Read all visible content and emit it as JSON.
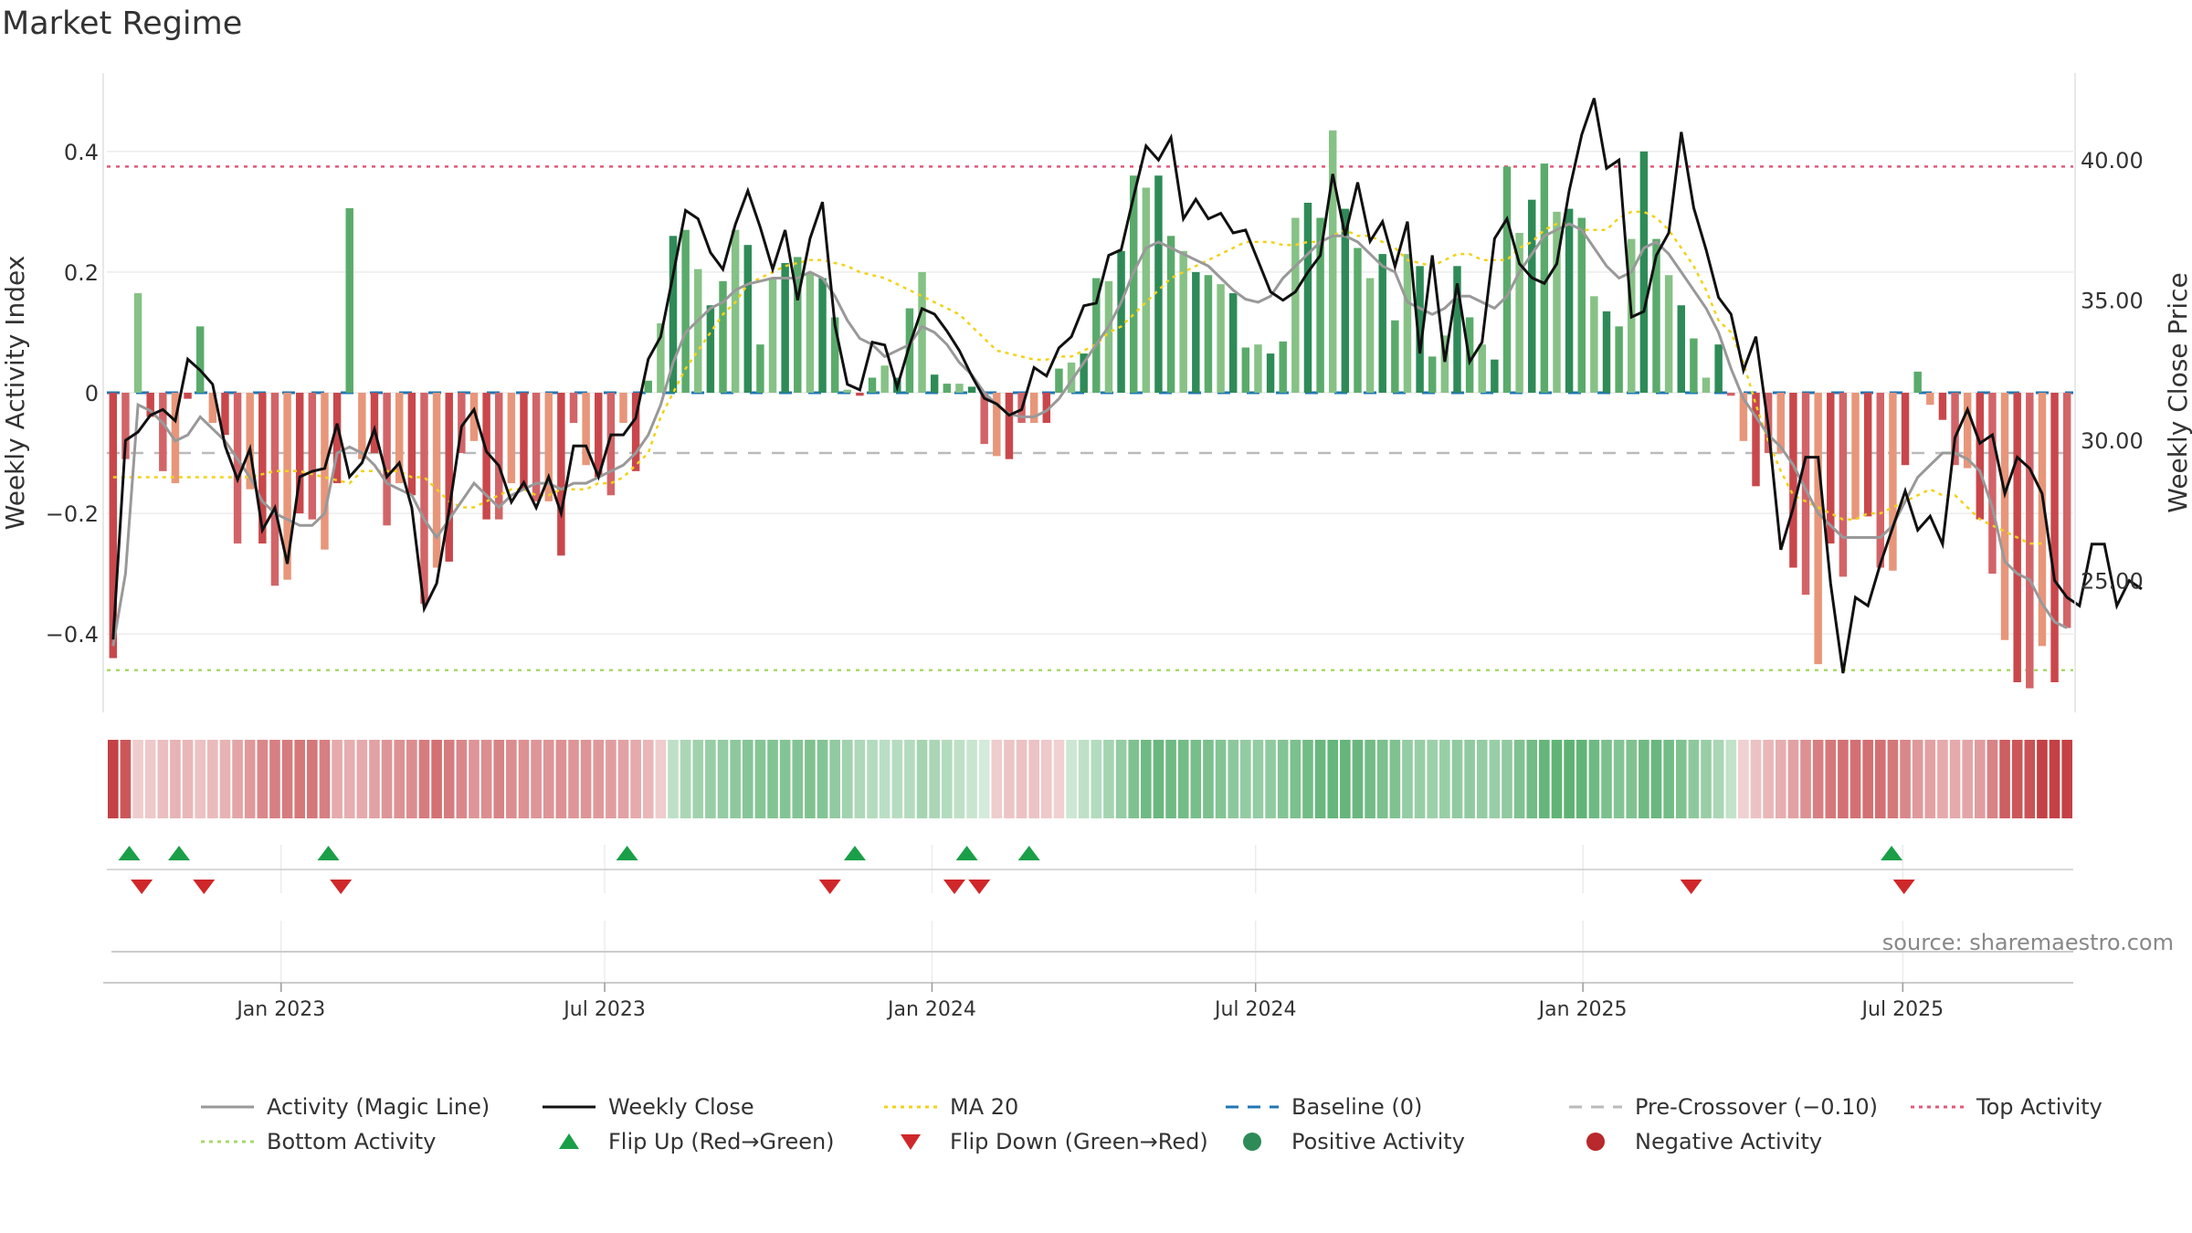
{
  "title": "Market Regime",
  "source": "source: sharemaestro.com",
  "colors": {
    "pos_dark": "#2e8b57",
    "pos_mid": "#5aab6b",
    "pos_light": "#86c286",
    "neg_dark": "#c9474b",
    "neg_mid": "#d26468",
    "neg_light": "#e8967a",
    "magic": "#999999",
    "close": "#111111",
    "ma20": "#f2d21b",
    "baseline": "#1f77b4",
    "precross": "#bbbbbb",
    "top": "#e05a78",
    "bottom": "#a8d86a",
    "flip_up": "#1a9f48",
    "flip_down": "#d0272a"
  },
  "chart_data": {
    "type": "bar",
    "ylabel_left": "Weekly Activity Index",
    "ylabel_right": "Weekly Close Price",
    "left_ticks": [
      "0.4",
      "0.2",
      "0",
      "−0.2",
      "−0.4"
    ],
    "left_tick_values": [
      0.4,
      0.2,
      0,
      -0.2,
      -0.4
    ],
    "right_ticks": [
      "40.00",
      "35.00",
      "30.00",
      "25.00"
    ],
    "right_tick_values": [
      40,
      35,
      30,
      25
    ],
    "ylim_left": [
      -0.53,
      0.53
    ],
    "ylim_right": [
      20.3,
      43.1
    ],
    "x_ticks": [
      "Jan 2023",
      "Jul 2023",
      "Jan 2024",
      "Jul 2024",
      "Jan 2025",
      "Jul 2025"
    ],
    "x_tick_weeks": [
      14,
      40,
      66.3,
      92.3,
      118.6,
      144.3
    ],
    "top_activity": 0.375,
    "bottom_activity": -0.46,
    "baseline": 0,
    "pre_crossover": -0.1,
    "activity": [
      -0.44,
      -0.11,
      0.165,
      -0.04,
      -0.13,
      -0.15,
      -0.01,
      0.11,
      -0.05,
      -0.07,
      -0.25,
      -0.16,
      -0.25,
      -0.32,
      -0.31,
      -0.2,
      -0.21,
      -0.26,
      -0.15,
      0.306,
      -0.11,
      -0.1,
      -0.22,
      -0.15,
      -0.17,
      -0.35,
      -0.29,
      -0.28,
      -0.1,
      -0.08,
      -0.21,
      -0.21,
      -0.15,
      -0.16,
      -0.18,
      -0.18,
      -0.27,
      -0.05,
      -0.12,
      -0.14,
      -0.17,
      -0.05,
      -0.13,
      0.02,
      0.115,
      0.26,
      0.27,
      0.205,
      0.145,
      0.185,
      0.27,
      0.245,
      0.08,
      0.19,
      0.215,
      0.225,
      0.2,
      0.19,
      0.125,
      0.005,
      -0.005,
      0.025,
      0.045,
      0.025,
      0.14,
      0.2,
      0.03,
      0.015,
      0.015,
      0.01,
      -0.085,
      -0.105,
      -0.11,
      -0.05,
      -0.05,
      -0.05,
      0.04,
      0.05,
      0.065,
      0.19,
      0.185,
      0.235,
      0.36,
      0.34,
      0.36,
      0.26,
      0.235,
      0.2,
      0.195,
      0.18,
      0.165,
      0.075,
      0.08,
      0.065,
      0.085,
      0.29,
      0.315,
      0.29,
      0.435,
      0.305,
      0.24,
      0.19,
      0.23,
      0.12,
      0.23,
      0.21,
      0.06,
      0.095,
      0.21,
      0.125,
      0.08,
      0.055,
      0.375,
      0.265,
      0.32,
      0.38,
      0.3,
      0.305,
      0.29,
      0.16,
      0.135,
      0.11,
      0.255,
      0.4,
      0.255,
      0.195,
      0.145,
      0.09,
      0.025,
      0.08,
      -0.005,
      -0.08,
      -0.155,
      -0.1,
      -0.1,
      -0.29,
      -0.335,
      -0.45,
      -0.25,
      -0.305,
      -0.21,
      -0.205,
      -0.29,
      -0.295,
      -0.12,
      0.035,
      -0.02,
      -0.045,
      -0.12,
      -0.125,
      -0.21,
      -0.3,
      -0.41,
      -0.48,
      -0.49,
      -0.42,
      -0.48,
      -0.39
    ],
    "magic_line": [
      -0.42,
      -0.3,
      -0.02,
      -0.03,
      -0.05,
      -0.08,
      -0.07,
      -0.04,
      -0.06,
      -0.08,
      -0.11,
      -0.14,
      -0.18,
      -0.2,
      -0.21,
      -0.22,
      -0.22,
      -0.2,
      -0.1,
      -0.09,
      -0.1,
      -0.12,
      -0.15,
      -0.16,
      -0.17,
      -0.21,
      -0.24,
      -0.21,
      -0.18,
      -0.15,
      -0.17,
      -0.19,
      -0.17,
      -0.16,
      -0.15,
      -0.15,
      -0.16,
      -0.15,
      -0.15,
      -0.14,
      -0.13,
      -0.12,
      -0.1,
      -0.07,
      -0.02,
      0.05,
      0.1,
      0.12,
      0.14,
      0.15,
      0.17,
      0.18,
      0.185,
      0.19,
      0.19,
      0.19,
      0.2,
      0.19,
      0.16,
      0.12,
      0.09,
      0.08,
      0.06,
      0.07,
      0.08,
      0.11,
      0.1,
      0.08,
      0.05,
      0.03,
      0.0,
      -0.02,
      -0.035,
      -0.04,
      -0.04,
      -0.03,
      -0.01,
      0.02,
      0.05,
      0.08,
      0.11,
      0.15,
      0.2,
      0.24,
      0.25,
      0.24,
      0.23,
      0.22,
      0.21,
      0.19,
      0.17,
      0.155,
      0.15,
      0.16,
      0.19,
      0.21,
      0.23,
      0.25,
      0.26,
      0.26,
      0.25,
      0.23,
      0.21,
      0.2,
      0.15,
      0.14,
      0.13,
      0.14,
      0.16,
      0.16,
      0.15,
      0.14,
      0.16,
      0.2,
      0.23,
      0.26,
      0.27,
      0.28,
      0.27,
      0.24,
      0.21,
      0.19,
      0.2,
      0.24,
      0.25,
      0.23,
      0.2,
      0.17,
      0.14,
      0.1,
      0.04,
      -0.01,
      -0.04,
      -0.07,
      -0.09,
      -0.12,
      -0.16,
      -0.2,
      -0.22,
      -0.24,
      -0.24,
      -0.24,
      -0.24,
      -0.22,
      -0.18,
      -0.14,
      -0.12,
      -0.1,
      -0.1,
      -0.11,
      -0.13,
      -0.19,
      -0.28,
      -0.3,
      -0.31,
      -0.35,
      -0.38,
      -0.39
    ],
    "ma20": [
      -0.14,
      -0.14,
      -0.14,
      -0.14,
      -0.14,
      -0.14,
      -0.14,
      -0.14,
      -0.14,
      -0.14,
      -0.14,
      -0.14,
      -0.135,
      -0.13,
      -0.13,
      -0.13,
      -0.135,
      -0.14,
      -0.145,
      -0.15,
      -0.13,
      -0.13,
      -0.13,
      -0.13,
      -0.14,
      -0.14,
      -0.16,
      -0.18,
      -0.19,
      -0.19,
      -0.18,
      -0.17,
      -0.16,
      -0.16,
      -0.17,
      -0.17,
      -0.16,
      -0.16,
      -0.16,
      -0.15,
      -0.15,
      -0.14,
      -0.12,
      -0.1,
      -0.04,
      0.0,
      0.04,
      0.07,
      0.1,
      0.13,
      0.15,
      0.18,
      0.19,
      0.2,
      0.21,
      0.215,
      0.22,
      0.22,
      0.215,
      0.21,
      0.2,
      0.195,
      0.19,
      0.18,
      0.17,
      0.16,
      0.15,
      0.14,
      0.13,
      0.11,
      0.09,
      0.07,
      0.065,
      0.06,
      0.055,
      0.055,
      0.06,
      0.06,
      0.07,
      0.08,
      0.1,
      0.11,
      0.13,
      0.15,
      0.17,
      0.19,
      0.2,
      0.21,
      0.22,
      0.23,
      0.24,
      0.25,
      0.25,
      0.25,
      0.245,
      0.245,
      0.25,
      0.25,
      0.26,
      0.27,
      0.26,
      0.26,
      0.25,
      0.24,
      0.22,
      0.215,
      0.21,
      0.22,
      0.23,
      0.23,
      0.22,
      0.22,
      0.22,
      0.24,
      0.25,
      0.27,
      0.28,
      0.28,
      0.27,
      0.27,
      0.27,
      0.29,
      0.3,
      0.3,
      0.29,
      0.27,
      0.24,
      0.21,
      0.17,
      0.12,
      0.1,
      0.05,
      -0.02,
      -0.08,
      -0.13,
      -0.17,
      -0.18,
      -0.19,
      -0.2,
      -0.21,
      -0.21,
      -0.2,
      -0.2,
      -0.19,
      -0.18,
      -0.17,
      -0.16,
      -0.17,
      -0.17,
      -0.19,
      -0.21,
      -0.22,
      -0.23,
      -0.24,
      -0.25,
      -0.25
    ],
    "weekly_close": [
      22.9,
      30.0,
      30.3,
      30.9,
      31.1,
      30.7,
      32.9,
      32.5,
      32.0,
      29.8,
      28.6,
      29.7,
      26.8,
      27.6,
      25.6,
      28.7,
      28.9,
      29.0,
      30.6,
      28.7,
      29.2,
      30.4,
      28.7,
      29.2,
      27.6,
      24.0,
      24.9,
      27.5,
      30.5,
      31.1,
      29.6,
      29.1,
      27.8,
      28.5,
      27.6,
      28.7,
      27.4,
      29.8,
      29.8,
      28.7,
      30.2,
      30.2,
      30.8,
      32.9,
      33.7,
      35.9,
      38.2,
      37.9,
      36.7,
      36.1,
      37.7,
      38.9,
      37.6,
      36.1,
      37.5,
      35.0,
      37.2,
      38.5,
      34.1,
      32.0,
      31.8,
      33.5,
      33.4,
      31.9,
      33.4,
      34.7,
      34.5,
      33.9,
      33.2,
      32.3,
      31.5,
      31.3,
      30.9,
      31.1,
      32.6,
      32.3,
      33.3,
      33.7,
      34.8,
      34.9,
      36.6,
      36.8,
      38.7,
      40.5,
      40.0,
      40.8,
      37.9,
      38.6,
      37.9,
      38.1,
      37.4,
      37.5,
      36.4,
      35.3,
      35.0,
      35.3,
      36.0,
      36.6,
      39.5,
      37.3,
      39.2,
      37.1,
      37.8,
      36.2,
      37.8,
      33.1,
      36.6,
      32.8,
      35.6,
      32.8,
      33.5,
      37.2,
      37.9,
      36.3,
      35.8,
      35.6,
      36.3,
      38.9,
      40.9,
      42.2,
      39.7,
      40.0,
      34.4,
      34.6,
      36.6,
      37.4,
      41.0,
      38.3,
      36.8,
      35.1,
      34.5,
      32.5,
      33.7,
      30.5,
      26.1,
      27.6,
      29.4,
      29.4,
      24.9,
      21.7,
      24.4,
      24.1,
      25.6,
      26.9,
      28.2,
      26.8,
      27.3,
      26.3,
      30.1,
      31.1,
      29.9,
      30.2,
      28.1,
      29.4,
      29.0,
      28.1,
      25.0,
      24.4,
      24.1,
      26.3,
      26.3,
      24.1,
      25.0,
      24.7
    ],
    "flip_up_weeks": [
      1.8,
      5.8,
      17.8,
      41.8,
      60.1,
      69.1,
      74.1,
      143.4
    ],
    "flip_down_weeks": [
      2.8,
      7.8,
      18.8,
      58.1,
      68.1,
      70.1,
      127.3,
      144.4
    ],
    "legend": [
      {
        "label": "Activity (Magic Line)",
        "kind": "line",
        "color": "#999999"
      },
      {
        "label": "Weekly Close",
        "kind": "line",
        "color": "#111111"
      },
      {
        "label": "MA 20",
        "kind": "dotted",
        "color": "#f2d21b"
      },
      {
        "label": "Baseline (0)",
        "kind": "dashed",
        "color": "#1f77b4"
      },
      {
        "label": "Pre-Crossover (−0.10)",
        "kind": "dashed",
        "color": "#bbbbbb"
      },
      {
        "label": "Top Activity",
        "kind": "dotted",
        "color": "#e05a78"
      },
      {
        "label": "Bottom Activity",
        "kind": "dotted",
        "color": "#a8d86a"
      },
      {
        "label": "Flip Up (Red→Green)",
        "kind": "tri-up",
        "color": "#1a9f48"
      },
      {
        "label": "Flip Down (Green→Red)",
        "kind": "tri-down",
        "color": "#d0272a"
      },
      {
        "label": "Positive Activity",
        "kind": "dot",
        "color": "#2e8b57"
      },
      {
        "label": "Negative Activity",
        "kind": "dot",
        "color": "#b8282c"
      }
    ]
  }
}
